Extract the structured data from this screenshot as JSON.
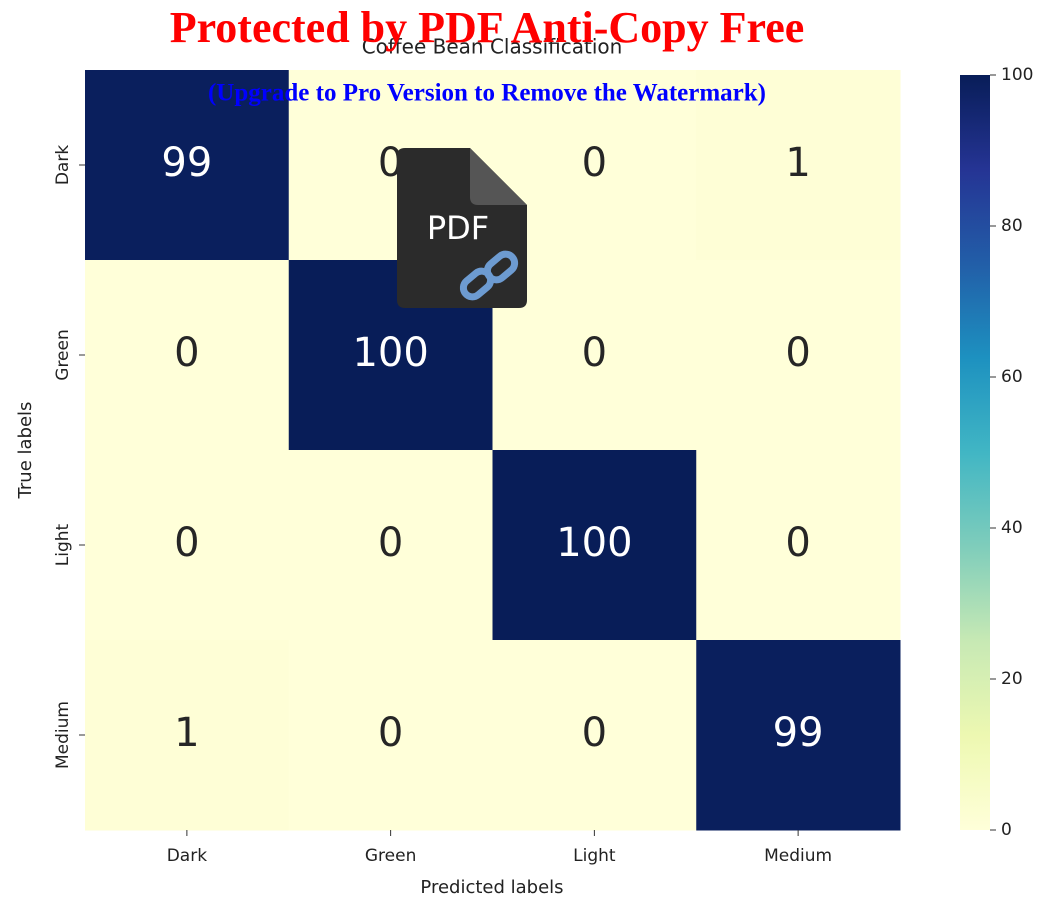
{
  "chart_data": {
    "type": "heatmap",
    "title": "Coffee Bean Classification",
    "xlabel": "Predicted labels",
    "ylabel": "True labels",
    "x_categories": [
      "Dark",
      "Green",
      "Light",
      "Medium"
    ],
    "y_categories": [
      "Dark",
      "Green",
      "Light",
      "Medium"
    ],
    "values": [
      [
        99,
        0,
        0,
        1
      ],
      [
        0,
        100,
        0,
        0
      ],
      [
        0,
        0,
        100,
        0
      ],
      [
        1,
        0,
        0,
        99
      ]
    ],
    "colormap": "YlGnBu",
    "colorbar_lim": [
      0,
      100
    ],
    "colorbar_ticks": [
      0,
      20,
      40,
      60,
      80,
      100
    ]
  },
  "watermark": {
    "title": "Protected by PDF Anti-Copy Free",
    "subtitle": "(Upgrade to Pro Version to Remove the Watermark)",
    "icon_label": "PDF"
  }
}
